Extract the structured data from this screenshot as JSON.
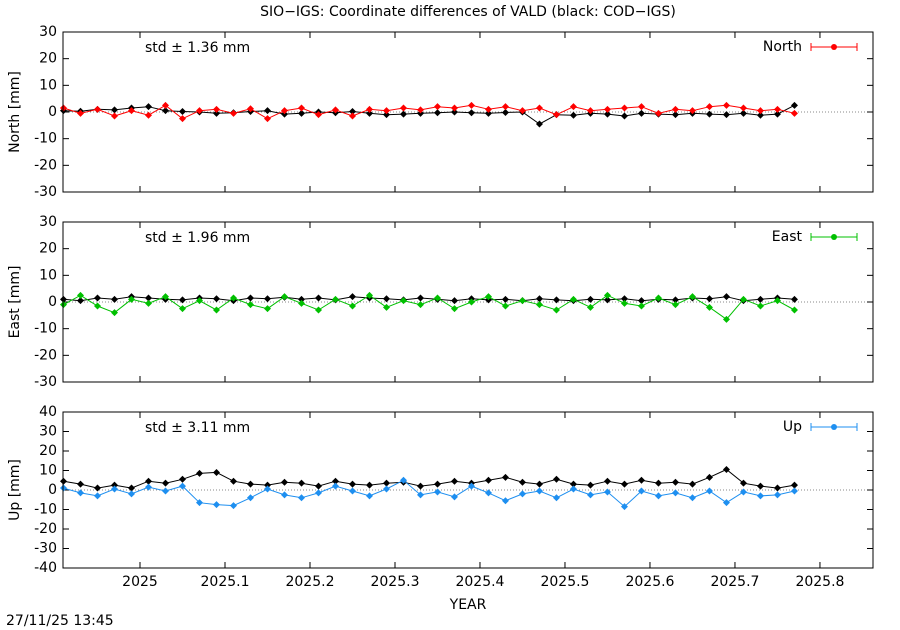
{
  "title": "SIO−IGS: Coordinate differences of VALD (black: COD−IGS)",
  "timestamp": "27/11/25 13:45",
  "chart_data": [
    {
      "type": "line",
      "ylabel": "North [mm]",
      "annotation": "std ± 1.36 mm",
      "annotation_color": "#ff0000",
      "xlim": [
        2024.9094,
        2025.8624
      ],
      "xticks": [
        2025,
        2025.1,
        2025.2,
        2025.3,
        2025.4,
        2025.5,
        2025.6,
        2025.7,
        2025.8
      ],
      "xtick_labels": false,
      "ylim": [
        -30,
        30
      ],
      "yticks": [
        -30,
        -20,
        -10,
        0,
        10,
        20,
        30
      ],
      "zeroaxis": true,
      "legend": "upper right",
      "x": [
        2024.91,
        2024.93,
        2024.95,
        2024.97,
        2024.99,
        2025.01,
        2025.03,
        2025.05,
        2025.07,
        2025.09,
        2025.11,
        2025.13,
        2025.15,
        2025.17,
        2025.19,
        2025.21,
        2025.23,
        2025.25,
        2025.27,
        2025.29,
        2025.31,
        2025.33,
        2025.35,
        2025.37,
        2025.39,
        2025.41,
        2025.43,
        2025.45,
        2025.47,
        2025.49,
        2025.51,
        2025.53,
        2025.55,
        2025.57,
        2025.59,
        2025.61,
        2025.63,
        2025.65,
        2025.67,
        2025.69,
        2025.71,
        2025.73,
        2025.75,
        2025.77
      ],
      "series": [
        {
          "color": "#000000",
          "values": [
            0.5,
            0.3,
            1.0,
            0.8,
            1.5,
            2.0,
            0.5,
            0.2,
            0.0,
            -0.5,
            -0.3,
            0.2,
            0.5,
            -0.8,
            -0.5,
            0.0,
            -0.3,
            0.2,
            -0.5,
            -1.0,
            -0.8,
            -0.5,
            -0.3,
            0.0,
            -0.3,
            -0.5,
            -0.2,
            0.0,
            -4.5,
            -1.0,
            -1.2,
            -0.5,
            -0.8,
            -1.5,
            -0.5,
            -0.8,
            -1.0,
            -0.5,
            -0.8,
            -1.0,
            -0.5,
            -1.2,
            -0.8,
            2.5
          ]
        },
        {
          "name": "North",
          "color": "#ff0000",
          "values": [
            1.5,
            -0.5,
            1.0,
            -1.5,
            0.5,
            -1.2,
            2.5,
            -2.5,
            0.5,
            1.0,
            -0.5,
            1.2,
            -2.5,
            0.5,
            1.5,
            -1.0,
            0.8,
            -1.5,
            1.0,
            0.5,
            1.5,
            0.8,
            2.0,
            1.5,
            2.5,
            1.0,
            2.0,
            0.5,
            1.5,
            -1.0,
            2.0,
            0.5,
            1.0,
            1.5,
            2.0,
            -0.5,
            1.0,
            0.5,
            2.0,
            2.5,
            1.5,
            0.5,
            1.0,
            -0.5
          ]
        }
      ]
    },
    {
      "type": "line",
      "ylabel": "East [mm]",
      "annotation": "std ± 1.96 mm",
      "annotation_color": "#00c000",
      "xlim": [
        2024.9094,
        2025.8624
      ],
      "xticks": [
        2025,
        2025.1,
        2025.2,
        2025.3,
        2025.4,
        2025.5,
        2025.6,
        2025.7,
        2025.8
      ],
      "xtick_labels": false,
      "ylim": [
        -30,
        30
      ],
      "yticks": [
        -30,
        -20,
        -10,
        0,
        10,
        20,
        30
      ],
      "zeroaxis": true,
      "legend": "upper right",
      "x": [
        2024.91,
        2024.93,
        2024.95,
        2024.97,
        2024.99,
        2025.01,
        2025.03,
        2025.05,
        2025.07,
        2025.09,
        2025.11,
        2025.13,
        2025.15,
        2025.17,
        2025.19,
        2025.21,
        2025.23,
        2025.25,
        2025.27,
        2025.29,
        2025.31,
        2025.33,
        2025.35,
        2025.37,
        2025.39,
        2025.41,
        2025.43,
        2025.45,
        2025.47,
        2025.49,
        2025.51,
        2025.53,
        2025.55,
        2025.57,
        2025.59,
        2025.61,
        2025.63,
        2025.65,
        2025.67,
        2025.69,
        2025.71,
        2025.73,
        2025.75,
        2025.77
      ],
      "series": [
        {
          "color": "#000000",
          "values": [
            1.0,
            0.5,
            1.5,
            1.0,
            2.0,
            1.5,
            1.0,
            0.8,
            1.5,
            1.2,
            0.5,
            1.5,
            1.2,
            1.8,
            1.0,
            1.5,
            0.8,
            2.0,
            1.5,
            1.2,
            0.8,
            1.5,
            1.0,
            0.5,
            1.2,
            0.8,
            1.0,
            0.5,
            1.2,
            0.8,
            0.5,
            1.0,
            0.8,
            1.2,
            0.5,
            1.0,
            0.8,
            1.5,
            1.2,
            2.0,
            0.5,
            1.0,
            1.5,
            1.0
          ]
        },
        {
          "name": "East",
          "color": "#00c000",
          "values": [
            -1.0,
            2.5,
            -1.5,
            -4.0,
            1.0,
            -0.5,
            2.0,
            -2.5,
            0.5,
            -3.0,
            1.5,
            -1.0,
            -2.5,
            2.0,
            -0.5,
            -3.0,
            1.0,
            -1.5,
            2.5,
            -2.0,
            0.5,
            -1.0,
            1.5,
            -2.5,
            0.0,
            2.0,
            -1.5,
            0.5,
            -1.0,
            -3.0,
            1.0,
            -2.0,
            2.5,
            -0.5,
            -1.5,
            1.5,
            -1.0,
            2.0,
            -2.0,
            -6.5,
            1.0,
            -1.5,
            0.5,
            -3.0
          ]
        }
      ]
    },
    {
      "type": "line",
      "ylabel": "Up [mm]",
      "xlabel": "YEAR",
      "annotation": "std ± 3.11 mm",
      "annotation_color": "#1e8ff0",
      "xlim": [
        2024.9094,
        2025.8624
      ],
      "xticks": [
        2025,
        2025.1,
        2025.2,
        2025.3,
        2025.4,
        2025.5,
        2025.6,
        2025.7,
        2025.8
      ],
      "xtick_labels": true,
      "ylim": [
        -40,
        40
      ],
      "yticks": [
        -40,
        -30,
        -20,
        -10,
        0,
        10,
        20,
        30,
        40
      ],
      "zeroaxis": true,
      "legend": "upper right",
      "x": [
        2024.91,
        2024.93,
        2024.95,
        2024.97,
        2024.99,
        2025.01,
        2025.03,
        2025.05,
        2025.07,
        2025.09,
        2025.11,
        2025.13,
        2025.15,
        2025.17,
        2025.19,
        2025.21,
        2025.23,
        2025.25,
        2025.27,
        2025.29,
        2025.31,
        2025.33,
        2025.35,
        2025.37,
        2025.39,
        2025.41,
        2025.43,
        2025.45,
        2025.47,
        2025.49,
        2025.51,
        2025.53,
        2025.55,
        2025.57,
        2025.59,
        2025.61,
        2025.63,
        2025.65,
        2025.67,
        2025.69,
        2025.71,
        2025.73,
        2025.75,
        2025.77
      ],
      "series": [
        {
          "color": "#000000",
          "values": [
            4.5,
            3.0,
            1.0,
            2.5,
            1.0,
            4.5,
            3.5,
            5.5,
            8.5,
            9.0,
            4.5,
            3.0,
            2.5,
            4.0,
            3.5,
            2.0,
            4.5,
            3.0,
            2.5,
            3.5,
            4.0,
            2.0,
            3.0,
            4.5,
            3.5,
            5.0,
            6.5,
            4.0,
            3.0,
            5.5,
            3.0,
            2.5,
            4.5,
            3.0,
            5.0,
            3.5,
            4.0,
            3.0,
            6.5,
            10.5,
            3.5,
            2.0,
            1.0,
            2.5
          ]
        },
        {
          "name": "Up",
          "color": "#1e8ff0",
          "values": [
            1.0,
            -1.5,
            -3.0,
            0.5,
            -2.0,
            1.5,
            -0.5,
            2.0,
            -6.5,
            -7.5,
            -8.0,
            -4.0,
            0.5,
            -2.5,
            -4.0,
            -1.5,
            2.0,
            -0.5,
            -3.0,
            0.5,
            5.0,
            -2.5,
            -1.0,
            -3.5,
            2.0,
            -1.5,
            -5.5,
            -2.0,
            -0.5,
            -4.0,
            0.5,
            -2.5,
            -1.0,
            -8.5,
            -0.5,
            -3.0,
            -1.5,
            -4.0,
            -0.5,
            -6.5,
            -1.0,
            -3.0,
            -2.5,
            -0.5
          ]
        }
      ]
    }
  ]
}
